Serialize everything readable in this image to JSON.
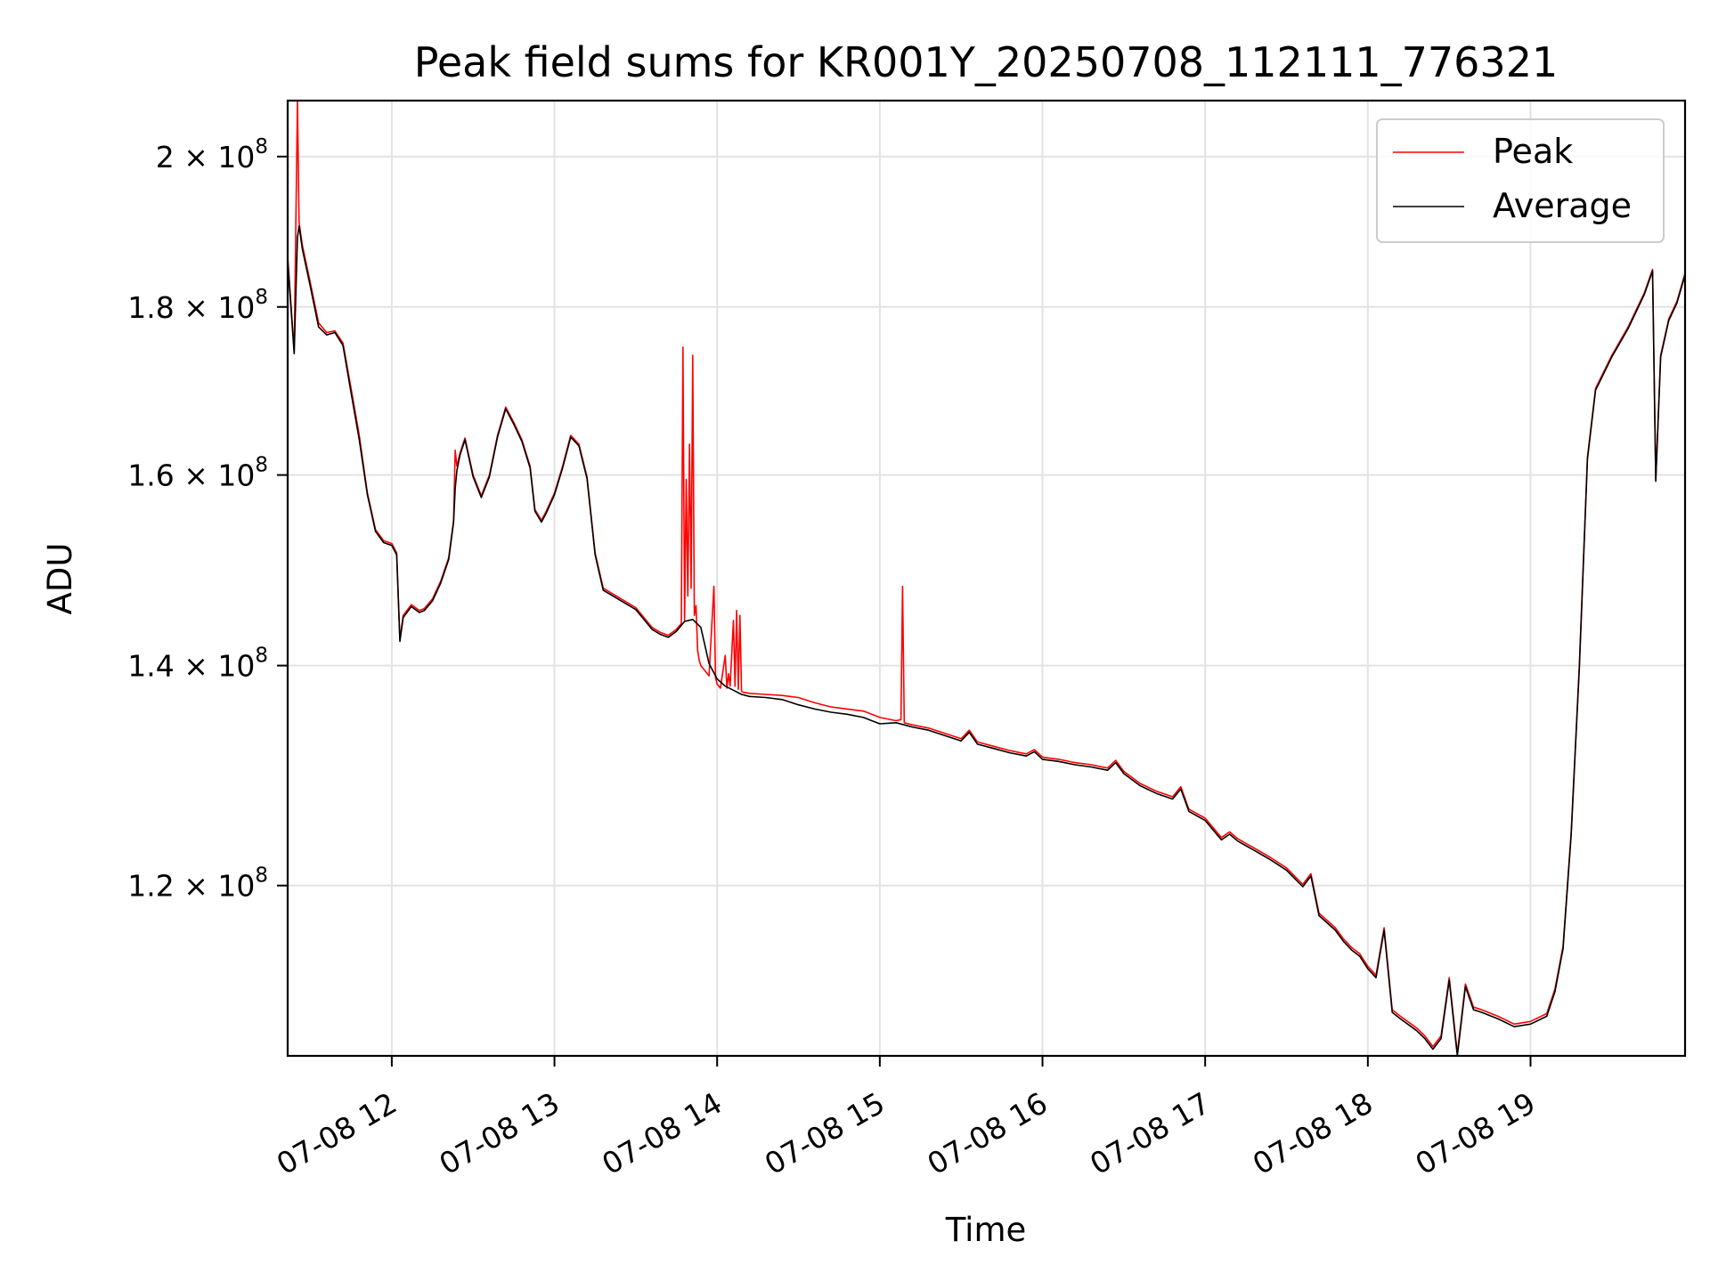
{
  "chart_data": {
    "type": "line",
    "title": "Peak field sums for KR001Y_20250708_112111_776321",
    "xlabel": "Time",
    "ylabel": "ADU",
    "x_axis": {
      "unit": "hours on 07-08",
      "range": [
        11.36,
        19.95
      ],
      "ticks": [
        12,
        13,
        14,
        15,
        16,
        17,
        18,
        19
      ],
      "tick_labels": [
        "07-08 12",
        "07-08 13",
        "07-08 14",
        "07-08 15",
        "07-08 16",
        "07-08 17",
        "07-08 18",
        "07-08 19"
      ]
    },
    "y_axis": {
      "scale": "log",
      "range": [
        106500000,
        208000000
      ],
      "ticks": [
        120000000,
        140000000,
        160000000,
        180000000,
        200000000
      ],
      "tick_labels": [
        {
          "mantissa": "1.2 × 10",
          "exp": "8"
        },
        {
          "mantissa": "1.4 × 10",
          "exp": "8"
        },
        {
          "mantissa": "1.6 × 10",
          "exp": "8"
        },
        {
          "mantissa": "1.8 × 10",
          "exp": "8"
        },
        {
          "mantissa": "2 × 10",
          "exp": "8"
        }
      ]
    },
    "grid": true,
    "legend_position": "upper right",
    "series": [
      {
        "name": "Peak",
        "color": "#ff0000",
        "x": [
          11.36,
          11.4,
          11.42,
          11.43,
          11.45,
          11.5,
          11.55,
          11.6,
          11.65,
          11.7,
          11.75,
          11.8,
          11.85,
          11.9,
          11.95,
          12.0,
          12.03,
          12.05,
          12.07,
          12.12,
          12.17,
          12.2,
          12.25,
          12.3,
          12.35,
          12.38,
          12.39,
          12.4,
          12.42,
          12.45,
          12.5,
          12.55,
          12.6,
          12.65,
          12.7,
          12.75,
          12.8,
          12.85,
          12.88,
          12.92,
          12.95,
          13.0,
          13.05,
          13.1,
          13.15,
          13.2,
          13.25,
          13.3,
          13.4,
          13.5,
          13.55,
          13.6,
          13.65,
          13.7,
          13.75,
          13.78,
          13.79,
          13.8,
          13.81,
          13.82,
          13.83,
          13.84,
          13.85,
          13.86,
          13.87,
          13.88,
          13.89,
          13.9,
          13.95,
          13.98,
          13.99,
          14.0,
          14.02,
          14.05,
          14.06,
          14.07,
          14.08,
          14.1,
          14.11,
          14.12,
          14.13,
          14.14,
          14.15,
          14.16,
          14.2,
          14.3,
          14.4,
          14.5,
          14.6,
          14.7,
          14.8,
          14.9,
          14.95,
          15.0,
          15.1,
          15.13,
          15.14,
          15.15,
          15.2,
          15.3,
          15.4,
          15.5,
          15.55,
          15.6,
          15.7,
          15.8,
          15.9,
          15.95,
          16.0,
          16.1,
          16.2,
          16.3,
          16.4,
          16.45,
          16.5,
          16.6,
          16.7,
          16.8,
          16.85,
          16.9,
          17.0,
          17.1,
          17.15,
          17.2,
          17.3,
          17.4,
          17.5,
          17.6,
          17.65,
          17.7,
          17.8,
          17.85,
          17.9,
          17.95,
          18.0,
          18.05,
          18.1,
          18.15,
          18.2,
          18.3,
          18.35,
          18.4,
          18.45,
          18.5,
          18.55,
          18.6,
          18.65,
          18.7,
          18.8,
          18.9,
          19.0,
          19.1,
          19.15,
          19.2,
          19.25,
          19.3,
          19.35,
          19.4,
          19.5,
          19.6,
          19.7,
          19.75,
          19.77,
          19.8,
          19.85,
          19.9,
          19.95
        ],
        "y": [
          186500000,
          174500000,
          208000000,
          191000000,
          188000000,
          183000000,
          178000000,
          176800000,
          177000000,
          175500000,
          170000000,
          164500000,
          158000000,
          154000000,
          152800000,
          152500000,
          151500000,
          142600000,
          145000000,
          146100000,
          145500000,
          145700000,
          146700000,
          148500000,
          151000000,
          155000000,
          162800000,
          161000000,
          162500000,
          164200000,
          160000000,
          157700000,
          160000000,
          164500000,
          167800000,
          166000000,
          164000000,
          161000000,
          156200000,
          155000000,
          156000000,
          158000000,
          161000000,
          164500000,
          163500000,
          159800000,
          151500000,
          147800000,
          146800000,
          145800000,
          144800000,
          143800000,
          143300000,
          143000000,
          143600000,
          144200000,
          175000000,
          144500000,
          159500000,
          147000000,
          163500000,
          147800000,
          174000000,
          145000000,
          146000000,
          141500000,
          140500000,
          140000000,
          139000000,
          148000000,
          138800000,
          138200000,
          137800000,
          141000000,
          137800000,
          139200000,
          138000000,
          144500000,
          138000000,
          145500000,
          137700000,
          145000000,
          137500000,
          137400000,
          137300000,
          137200000,
          137100000,
          136900000,
          136400000,
          136000000,
          135800000,
          135600000,
          135300000,
          135000000,
          134700000,
          134800000,
          148000000,
          134500000,
          134300000,
          134000000,
          133500000,
          133000000,
          133800000,
          132700000,
          132300000,
          131900000,
          131600000,
          132000000,
          131300000,
          131100000,
          130800000,
          130600000,
          130300000,
          131000000,
          130000000,
          128900000,
          128200000,
          127700000,
          128600000,
          126600000,
          125800000,
          124100000,
          124600000,
          124000000,
          123200000,
          122400000,
          121500000,
          120100000,
          121000000,
          117700000,
          116500000,
          115600000,
          114900000,
          114400000,
          113400000,
          112700000,
          116500000,
          110000000,
          109500000,
          108600000,
          108000000,
          107200000,
          108000000,
          112500000,
          106700000,
          112000000,
          110200000,
          110000000,
          109500000,
          108900000,
          109100000,
          109700000,
          111600000,
          115000000,
          124500000,
          140000000,
          162000000,
          170000000,
          174000000,
          177500000,
          181800000,
          184800000,
          159500000,
          174000000,
          178500000,
          180700000,
          184300000
        ]
      },
      {
        "name": "Average",
        "color": "#000000",
        "x": [
          11.36,
          11.4,
          11.42,
          11.43,
          11.45,
          11.5,
          11.55,
          11.6,
          11.65,
          11.7,
          11.75,
          11.8,
          11.85,
          11.9,
          11.95,
          12.0,
          12.03,
          12.05,
          12.07,
          12.12,
          12.17,
          12.2,
          12.25,
          12.3,
          12.35,
          12.38,
          12.39,
          12.4,
          12.42,
          12.45,
          12.5,
          12.55,
          12.6,
          12.65,
          12.7,
          12.75,
          12.8,
          12.85,
          12.88,
          12.92,
          12.95,
          13.0,
          13.05,
          13.1,
          13.15,
          13.2,
          13.25,
          13.3,
          13.4,
          13.5,
          13.55,
          13.6,
          13.65,
          13.7,
          13.75,
          13.78,
          13.8,
          13.85,
          13.9,
          13.95,
          14.0,
          14.05,
          14.1,
          14.15,
          14.2,
          14.3,
          14.4,
          14.5,
          14.6,
          14.7,
          14.8,
          14.9,
          14.95,
          15.0,
          15.1,
          15.15,
          15.2,
          15.3,
          15.4,
          15.5,
          15.55,
          15.6,
          15.7,
          15.8,
          15.9,
          15.95,
          16.0,
          16.1,
          16.2,
          16.3,
          16.4,
          16.45,
          16.5,
          16.6,
          16.7,
          16.8,
          16.85,
          16.9,
          17.0,
          17.1,
          17.15,
          17.2,
          17.3,
          17.4,
          17.5,
          17.6,
          17.65,
          17.7,
          17.8,
          17.85,
          17.9,
          17.95,
          18.0,
          18.05,
          18.1,
          18.15,
          18.2,
          18.3,
          18.35,
          18.4,
          18.45,
          18.5,
          18.55,
          18.6,
          18.65,
          18.7,
          18.8,
          18.9,
          19.0,
          19.1,
          19.15,
          19.2,
          19.25,
          19.3,
          19.35,
          19.4,
          19.5,
          19.6,
          19.7,
          19.75,
          19.77,
          19.8,
          19.85,
          19.9,
          19.95
        ],
        "y": [
          186000000,
          174200000,
          189000000,
          190500000,
          187500000,
          182500000,
          177500000,
          176500000,
          176800000,
          175200000,
          169500000,
          164000000,
          157800000,
          153800000,
          152600000,
          152300000,
          151300000,
          142400000,
          144800000,
          145900000,
          145300000,
          145500000,
          146500000,
          148300000,
          150800000,
          154800000,
          158500000,
          160500000,
          162300000,
          164000000,
          159800000,
          157500000,
          159800000,
          164300000,
          167600000,
          165800000,
          163800000,
          160800000,
          156000000,
          154800000,
          155800000,
          157800000,
          160800000,
          164300000,
          163300000,
          159600000,
          151300000,
          147600000,
          146600000,
          145600000,
          144600000,
          143600000,
          143100000,
          142800000,
          143400000,
          144000000,
          144400000,
          144600000,
          143800000,
          140200000,
          138700000,
          138000000,
          137600000,
          137200000,
          137000000,
          136900000,
          136700000,
          136200000,
          135800000,
          135500000,
          135300000,
          135000000,
          134700000,
          134400000,
          134500000,
          134300000,
          134100000,
          133800000,
          133300000,
          132800000,
          133600000,
          132500000,
          132100000,
          131700000,
          131400000,
          131800000,
          131100000,
          130900000,
          130600000,
          130400000,
          130100000,
          130800000,
          129800000,
          128700000,
          128000000,
          127500000,
          128400000,
          126400000,
          125600000,
          123900000,
          124400000,
          123800000,
          123000000,
          122200000,
          121300000,
          119900000,
          120800000,
          117500000,
          116300000,
          115400000,
          114700000,
          114200000,
          113200000,
          112500000,
          116300000,
          109800000,
          109300000,
          108400000,
          107800000,
          107000000,
          107800000,
          112300000,
          106500000,
          111800000,
          110000000,
          109800000,
          109300000,
          108700000,
          108900000,
          109500000,
          111400000,
          114800000,
          124300000,
          139800000,
          161800000,
          169800000,
          173800000,
          177300000,
          181600000,
          184600000,
          159300000,
          173800000,
          178300000,
          180500000,
          184100000
        ]
      }
    ]
  }
}
